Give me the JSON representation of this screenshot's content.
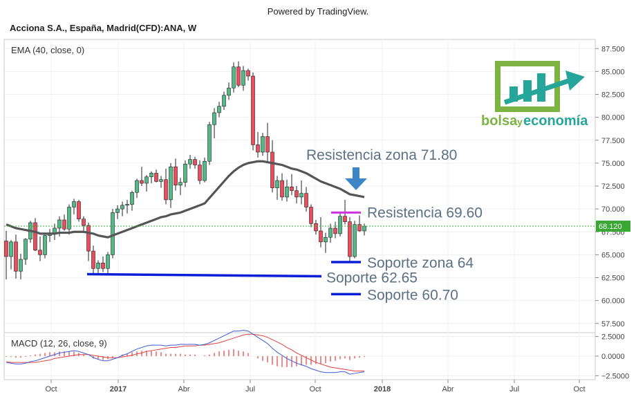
{
  "header": {
    "powered_by": "Powered by TradingView.",
    "symbol_title": "Acciona S.A., España, Madrid(CFD):ANA, W"
  },
  "logo": {
    "text_main": "bolsa",
    "text_y": "y",
    "text_end": "economía",
    "colors": {
      "green": "#7cb342",
      "teal": "#26a69a"
    }
  },
  "chart_data": [
    {
      "type": "candlestick",
      "indicator_label": "EMA (40, close, 0)",
      "x_tick_labels": [
        "Oct",
        "2017",
        "Abr",
        "Jul",
        "Oct",
        "2018",
        "Abr",
        "Jul",
        "Oct"
      ],
      "y_tick_labels": [
        "87.500",
        "85.000",
        "82.500",
        "80.000",
        "77.500",
        "75.000",
        "72.500",
        "70.000",
        "67.500",
        "65.000",
        "62.500",
        "60.000",
        "57.500"
      ],
      "ylim": [
        56.5,
        88.5
      ],
      "last_price": 68.12,
      "last_price_label": "68.120",
      "colors": {
        "up": "#53b987",
        "down": "#eb4d5c",
        "ema": "#555555",
        "last_line": "#30b030"
      },
      "candles": [
        [
          66.5,
          67.6,
          62.3,
          64.8
        ],
        [
          64.8,
          66.6,
          63.4,
          66.4
        ],
        [
          66.4,
          67.2,
          62.4,
          63.2
        ],
        [
          63.2,
          65.1,
          62.3,
          64.5
        ],
        [
          64.5,
          66.8,
          63.9,
          66.7
        ],
        [
          66.7,
          68.7,
          66.3,
          68.5
        ],
        [
          68.5,
          69.0,
          65.4,
          65.5
        ],
        [
          65.5,
          67.0,
          64.3,
          65.0
        ],
        [
          65.0,
          67.3,
          64.6,
          67.1
        ],
        [
          67.1,
          67.8,
          66.4,
          67.3
        ],
        [
          67.3,
          68.4,
          66.6,
          67.9
        ],
        [
          67.9,
          69.2,
          67.0,
          68.8
        ],
        [
          68.8,
          69.4,
          67.6,
          67.8
        ],
        [
          67.8,
          70.5,
          67.2,
          70.2
        ],
        [
          70.2,
          71.1,
          69.4,
          70.8
        ],
        [
          70.8,
          71.0,
          68.6,
          68.9
        ],
        [
          68.9,
          69.2,
          67.6,
          68.2
        ],
        [
          68.2,
          68.5,
          64.3,
          65.4
        ],
        [
          65.4,
          66.0,
          62.9,
          63.5
        ],
        [
          63.5,
          64.4,
          62.9,
          64.1
        ],
        [
          64.1,
          64.8,
          63.1,
          63.5
        ],
        [
          63.5,
          65.3,
          62.8,
          65.0
        ],
        [
          65.0,
          70.0,
          64.6,
          69.6
        ],
        [
          69.6,
          70.4,
          68.9,
          70.0
        ],
        [
          70.0,
          70.8,
          69.2,
          70.4
        ],
        [
          70.4,
          71.0,
          69.5,
          70.5
        ],
        [
          70.5,
          72.0,
          69.8,
          71.8
        ],
        [
          71.8,
          73.3,
          71.2,
          73.1
        ],
        [
          73.1,
          74.6,
          72.5,
          72.8
        ],
        [
          72.8,
          73.7,
          71.9,
          73.5
        ],
        [
          73.5,
          74.1,
          72.8,
          73.9
        ],
        [
          73.9,
          74.3,
          72.9,
          73.0
        ],
        [
          73.0,
          73.6,
          72.3,
          73.2
        ],
        [
          73.2,
          74.4,
          70.5,
          71.0
        ],
        [
          71.0,
          75.0,
          70.1,
          74.6
        ],
        [
          74.6,
          75.5,
          72.0,
          72.6
        ],
        [
          72.6,
          73.4,
          71.5,
          72.9
        ],
        [
          72.9,
          75.3,
          72.4,
          74.9
        ],
        [
          74.9,
          75.9,
          74.4,
          75.4
        ],
        [
          75.4,
          75.7,
          74.4,
          74.8
        ],
        [
          74.8,
          75.3,
          72.7,
          73.1
        ],
        [
          73.1,
          75.6,
          72.9,
          75.2
        ],
        [
          75.2,
          79.5,
          74.8,
          79.2
        ],
        [
          79.2,
          81.0,
          77.7,
          80.5
        ],
        [
          80.5,
          81.7,
          80.0,
          81.2
        ],
        [
          81.2,
          82.8,
          80.8,
          82.4
        ],
        [
          82.4,
          83.8,
          81.9,
          83.2
        ],
        [
          83.2,
          86.0,
          82.7,
          85.5
        ],
        [
          85.5,
          86.1,
          83.3,
          83.5
        ],
        [
          83.5,
          85.6,
          82.9,
          85.1
        ],
        [
          85.1,
          85.3,
          84.0,
          84.5
        ],
        [
          84.5,
          84.9,
          76.4,
          77.0
        ],
        [
          77.0,
          78.4,
          75.6,
          76.2
        ],
        [
          76.2,
          78.3,
          75.8,
          77.9
        ],
        [
          77.9,
          79.4,
          75.0,
          76.2
        ],
        [
          76.2,
          77.5,
          71.8,
          72.3
        ],
        [
          72.3,
          73.6,
          71.0,
          73.1
        ],
        [
          73.1,
          73.9,
          70.9,
          71.3
        ],
        [
          71.3,
          73.2,
          70.8,
          72.4
        ],
        [
          72.4,
          73.8,
          71.5,
          72.0
        ],
        [
          72.0,
          72.5,
          70.6,
          71.3
        ],
        [
          71.3,
          73.1,
          70.5,
          71.7
        ],
        [
          71.7,
          72.4,
          69.7,
          70.2
        ],
        [
          70.2,
          70.5,
          68.0,
          68.4
        ],
        [
          68.4,
          68.8,
          67.2,
          67.6
        ],
        [
          67.6,
          69.1,
          65.8,
          66.4
        ],
        [
          66.4,
          67.4,
          65.2,
          66.9
        ],
        [
          66.9,
          68.4,
          66.3,
          67.9
        ],
        [
          67.9,
          68.6,
          66.8,
          67.3
        ],
        [
          67.3,
          69.7,
          67.0,
          69.2
        ],
        [
          69.2,
          71.0,
          68.3,
          68.6
        ],
        [
          68.6,
          69.1,
          64.3,
          64.8
        ],
        [
          64.8,
          68.7,
          64.6,
          68.3
        ],
        [
          68.3,
          69.3,
          67.5,
          67.6
        ],
        [
          67.6,
          68.4,
          67.1,
          68.12
        ]
      ],
      "ema": [
        68.3,
        68.1,
        67.9,
        67.8,
        67.7,
        67.6,
        67.5,
        67.3,
        67.3,
        67.3,
        67.3,
        67.4,
        67.4,
        67.4,
        67.5,
        67.5,
        67.5,
        67.4,
        67.3,
        67.1,
        67.0,
        66.9,
        67.1,
        67.3,
        67.5,
        67.7,
        67.9,
        68.1,
        68.3,
        68.5,
        68.7,
        68.9,
        69.1,
        69.2,
        69.4,
        69.5,
        69.6,
        69.8,
        70.0,
        70.2,
        70.4,
        70.6,
        71.2,
        71.8,
        72.4,
        73.0,
        73.6,
        74.1,
        74.5,
        74.8,
        75.0,
        75.1,
        75.2,
        75.2,
        75.1,
        75.0,
        74.9,
        74.8,
        74.6,
        74.4,
        74.3,
        74.1,
        73.9,
        73.6,
        73.3,
        73.0,
        72.8,
        72.6,
        72.4,
        72.2,
        71.9,
        71.6,
        71.5,
        71.4,
        71.3
      ],
      "annotations": [
        {
          "text": "Resistencia zona 71.80",
          "color": "#5b7184"
        },
        {
          "text": "Resistencia 69.60",
          "color": "#5b7184",
          "line_value": 69.6,
          "line_color": "#cc33dd"
        },
        {
          "text": "Soporte zona 64",
          "color": "#5b7184",
          "line_value": 64.2,
          "line_color": "#0a1ed8"
        },
        {
          "text": "Soporte 62.65",
          "color": "#5b7184",
          "line_value": 62.65,
          "line_color": "#0a1ed8"
        },
        {
          "text": "Soporte 60.70",
          "color": "#5b7184",
          "line_value": 60.7,
          "line_color": "#0a1ed8"
        }
      ]
    },
    {
      "type": "line",
      "indicator_label": "MACD (12, 26, close, 9)",
      "y_tick_labels": [
        "2.5000",
        "0.0000",
        "−2.5000"
      ],
      "ylim": [
        -3.0,
        3.0
      ],
      "colors": {
        "macd": "#3a5bd9",
        "signal": "#e34040",
        "histogram": "#e34040"
      },
      "macd": [
        -0.8,
        -0.9,
        -1.0,
        -1.0,
        -0.9,
        -0.7,
        -0.6,
        -0.4,
        -0.2,
        0.0,
        0.2,
        0.4,
        0.5,
        0.6,
        0.7,
        0.6,
        0.4,
        0.2,
        -0.2,
        -0.4,
        -0.6,
        -0.6,
        -0.4,
        -0.2,
        0.1,
        0.3,
        0.6,
        0.9,
        1.1,
        1.3,
        1.4,
        1.4,
        1.4,
        1.3,
        1.4,
        1.4,
        1.5,
        1.5,
        1.5,
        1.5,
        1.4,
        1.5,
        1.7,
        2.0,
        2.3,
        2.6,
        2.9,
        3.2,
        3.2,
        3.3,
        3.2,
        2.8,
        2.4,
        2.0,
        1.6,
        1.0,
        0.5,
        0.1,
        -0.3,
        -0.6,
        -0.9,
        -1.1,
        -1.3,
        -1.6,
        -1.8,
        -2.0,
        -2.1,
        -2.1,
        -2.1,
        -2.0,
        -2.0,
        -2.3,
        -2.2,
        -2.1,
        -2.0
      ],
      "signal": [
        -0.7,
        -0.8,
        -0.8,
        -0.8,
        -0.8,
        -0.8,
        -0.8,
        -0.7,
        -0.6,
        -0.5,
        -0.3,
        -0.2,
        -0.1,
        0.0,
        0.1,
        0.2,
        0.2,
        0.2,
        0.1,
        0.0,
        -0.1,
        -0.2,
        -0.2,
        -0.2,
        -0.1,
        0.0,
        0.1,
        0.3,
        0.4,
        0.6,
        0.7,
        0.8,
        0.9,
        1.0,
        1.1,
        1.1,
        1.2,
        1.3,
        1.3,
        1.3,
        1.4,
        1.4,
        1.5,
        1.6,
        1.7,
        1.9,
        2.1,
        2.3,
        2.5,
        2.7,
        2.8,
        2.8,
        2.7,
        2.6,
        2.4,
        2.1,
        1.8,
        1.5,
        1.1,
        0.8,
        0.4,
        0.1,
        -0.2,
        -0.5,
        -0.8,
        -1.0,
        -1.2,
        -1.4,
        -1.5,
        -1.6,
        -1.7,
        -1.8,
        -1.9,
        -1.9,
        -1.9
      ]
    }
  ]
}
